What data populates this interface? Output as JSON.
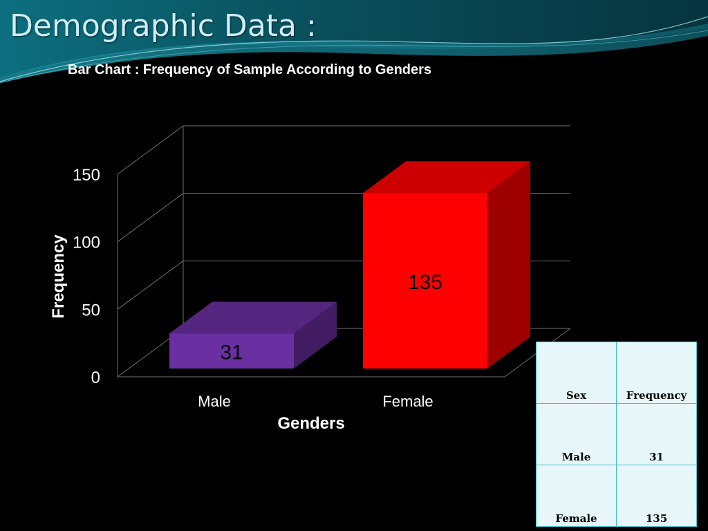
{
  "slide": {
    "title": "Demographic Data :"
  },
  "colors": {
    "background": "#000000",
    "male_bar": "#6a2fa0",
    "female_bar": "#ff0000",
    "table_bg": "#e7f6f8",
    "table_border": "#3fbfcf"
  },
  "chart_data": {
    "type": "bar",
    "title": "Bar Chart : Frequency of Sample According to Genders",
    "xlabel": "Genders",
    "ylabel": "Frequency",
    "categories": [
      "Male",
      "Female"
    ],
    "values": [
      31,
      135
    ],
    "data_labels": [
      "31",
      "135"
    ],
    "yticks": [
      "0",
      "50",
      "100",
      "150"
    ],
    "ylim": [
      0,
      150
    ],
    "grid": true,
    "style": "3d"
  },
  "table": {
    "headers": [
      "Sex",
      "Frequency"
    ],
    "rows": [
      [
        "Male",
        "31"
      ],
      [
        "Female",
        "135"
      ]
    ]
  }
}
